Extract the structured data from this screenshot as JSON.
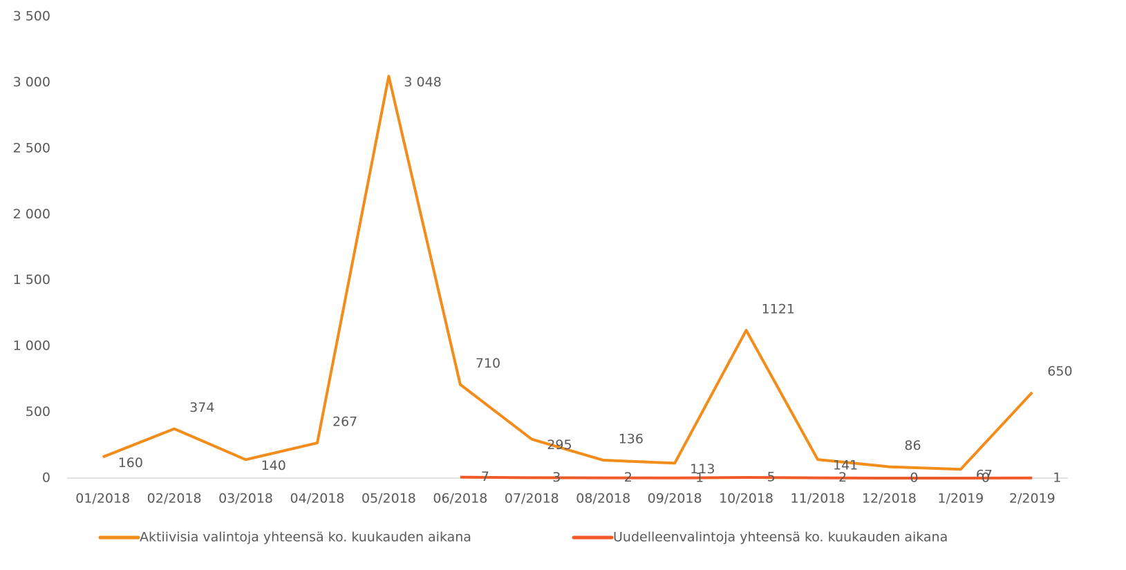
{
  "chart_data": {
    "type": "line",
    "categories": [
      "01/2018",
      "02/2018",
      "03/2018",
      "04/2018",
      "05/2018",
      "06/2018",
      "07/2018",
      "08/2018",
      "09/2018",
      "10/2018",
      "11/2018",
      "12/2018",
      "1/2019",
      "2/2019"
    ],
    "series": [
      {
        "name": "Aktiivisia valintoja yhteensä ko. kuukauden aikana",
        "color": "#f28c1a",
        "values": [
          160,
          374,
          140,
          267,
          3048,
          710,
          295,
          136,
          113,
          1121,
          141,
          86,
          67,
          650
        ],
        "value_labels": [
          "160",
          "374",
          "140",
          "267",
          "3 048",
          "710",
          "295",
          "136",
          "113",
          "1121",
          "141",
          "86",
          "67",
          "650"
        ]
      },
      {
        "name": "Uudelleenvalintoja yhteensä ko. kuukauden aikana",
        "color": "#f05a28",
        "values": [
          null,
          null,
          null,
          null,
          null,
          7,
          3,
          2,
          1,
          5,
          2,
          0,
          0,
          1
        ]
      }
    ],
    "ylim": [
      0,
      3500
    ],
    "yticks": [
      0,
      500,
      {
        "value": 1000,
        "label": "1 000"
      },
      {
        "value": 1500,
        "label": "1 500"
      },
      {
        "value": 2000,
        "label": "2 000"
      },
      {
        "value": 2500,
        "label": "2 500"
      },
      {
        "value": 3000,
        "label": "3 000"
      },
      {
        "value": 3500,
        "label": "3 500"
      }
    ],
    "grid": false,
    "legend": "bottom"
  }
}
